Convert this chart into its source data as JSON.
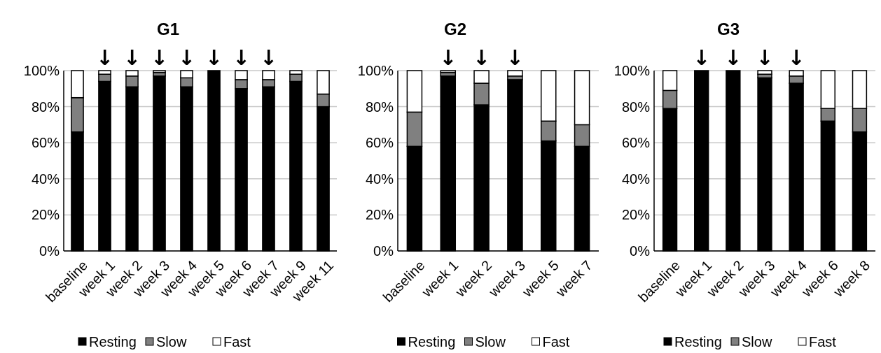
{
  "chart_data": [
    {
      "type": "bar",
      "title": "G1",
      "stacked": true,
      "categories": [
        "baseline",
        "week 1",
        "week 2",
        "week 3",
        "week 4",
        "week 5",
        "week 6",
        "week 7",
        "week 9",
        "week 11"
      ],
      "series": [
        {
          "name": "Resting",
          "color": "#000000",
          "values": [
            66,
            94,
            91,
            97,
            91,
            100,
            90,
            91,
            94,
            80
          ]
        },
        {
          "name": "Slow",
          "color": "#808080",
          "values": [
            19,
            4,
            6,
            2,
            5,
            0,
            5,
            4,
            4,
            7
          ]
        },
        {
          "name": "Fast",
          "color": "#ffffff",
          "values": [
            15,
            2,
            3,
            1,
            4,
            0,
            5,
            5,
            2,
            13
          ]
        }
      ],
      "ylim": [
        0,
        100
      ],
      "yticks": [
        {
          "value": 0,
          "label": "0%"
        },
        {
          "value": 20,
          "label": "20%"
        },
        {
          "value": 40,
          "label": "40%"
        },
        {
          "value": 60,
          "label": "60%"
        },
        {
          "value": 80,
          "label": "80%"
        },
        {
          "value": 100,
          "label": "100%"
        }
      ],
      "grid": "y",
      "legend": "bottom",
      "annotations": [
        {
          "text": "↓",
          "x": "week 1",
          "y": 100
        },
        {
          "text": "↓",
          "x": "week 2",
          "y": 100
        },
        {
          "text": "↓",
          "x": "week 3",
          "y": 100
        },
        {
          "text": "↓",
          "x": "week 4",
          "y": 100
        },
        {
          "text": "↓",
          "x": "week 5",
          "y": 100
        },
        {
          "text": "↓",
          "x": "week 6",
          "y": 100
        },
        {
          "text": "↓",
          "x": "week 7",
          "y": 100
        }
      ]
    },
    {
      "type": "bar",
      "title": "G2",
      "stacked": true,
      "categories": [
        "baseline",
        "week 1",
        "week 2",
        "week 3",
        "week 5",
        "week 7"
      ],
      "series": [
        {
          "name": "Resting",
          "color": "#000000",
          "values": [
            58,
            97,
            81,
            95,
            61,
            58
          ]
        },
        {
          "name": "Slow",
          "color": "#808080",
          "values": [
            19,
            2,
            12,
            2,
            11,
            12
          ]
        },
        {
          "name": "Fast",
          "color": "#ffffff",
          "values": [
            23,
            1,
            7,
            3,
            28,
            30
          ]
        }
      ],
      "ylim": [
        0,
        100
      ],
      "yticks": [
        {
          "value": 0,
          "label": "0%"
        },
        {
          "value": 20,
          "label": "20%"
        },
        {
          "value": 40,
          "label": "40%"
        },
        {
          "value": 60,
          "label": "60%"
        },
        {
          "value": 80,
          "label": "80%"
        },
        {
          "value": 100,
          "label": "100%"
        }
      ],
      "grid": "y",
      "legend": "bottom",
      "annotations": [
        {
          "text": "↓",
          "x": "week 1",
          "y": 100
        },
        {
          "text": "↓",
          "x": "week 2",
          "y": 100
        },
        {
          "text": "↓",
          "x": "week 3",
          "y": 100
        }
      ]
    },
    {
      "type": "bar",
      "title": "G3",
      "stacked": true,
      "categories": [
        "baseline",
        "week 1",
        "week 2",
        "week 3",
        "week 4",
        "week 6",
        "week 8"
      ],
      "series": [
        {
          "name": "Resting",
          "color": "#000000",
          "values": [
            79,
            100,
            100,
            96,
            93,
            72,
            66
          ]
        },
        {
          "name": "Slow",
          "color": "#808080",
          "values": [
            10,
            0,
            0,
            2,
            4,
            7,
            13
          ]
        },
        {
          "name": "Fast",
          "color": "#ffffff",
          "values": [
            11,
            0,
            0,
            2,
            3,
            21,
            21
          ]
        }
      ],
      "ylim": [
        0,
        100
      ],
      "yticks": [
        {
          "value": 0,
          "label": "0%"
        },
        {
          "value": 20,
          "label": "20%"
        },
        {
          "value": 40,
          "label": "40%"
        },
        {
          "value": 60,
          "label": "60%"
        },
        {
          "value": 80,
          "label": "80%"
        },
        {
          "value": 100,
          "label": "100%"
        }
      ],
      "grid": "y",
      "legend": "bottom",
      "annotations": [
        {
          "text": "↓",
          "x": "week 1",
          "y": 100
        },
        {
          "text": "↓",
          "x": "week 2",
          "y": 100
        },
        {
          "text": "↓",
          "x": "week 3",
          "y": 100
        },
        {
          "text": "↓",
          "x": "week 4",
          "y": 100
        }
      ]
    }
  ]
}
